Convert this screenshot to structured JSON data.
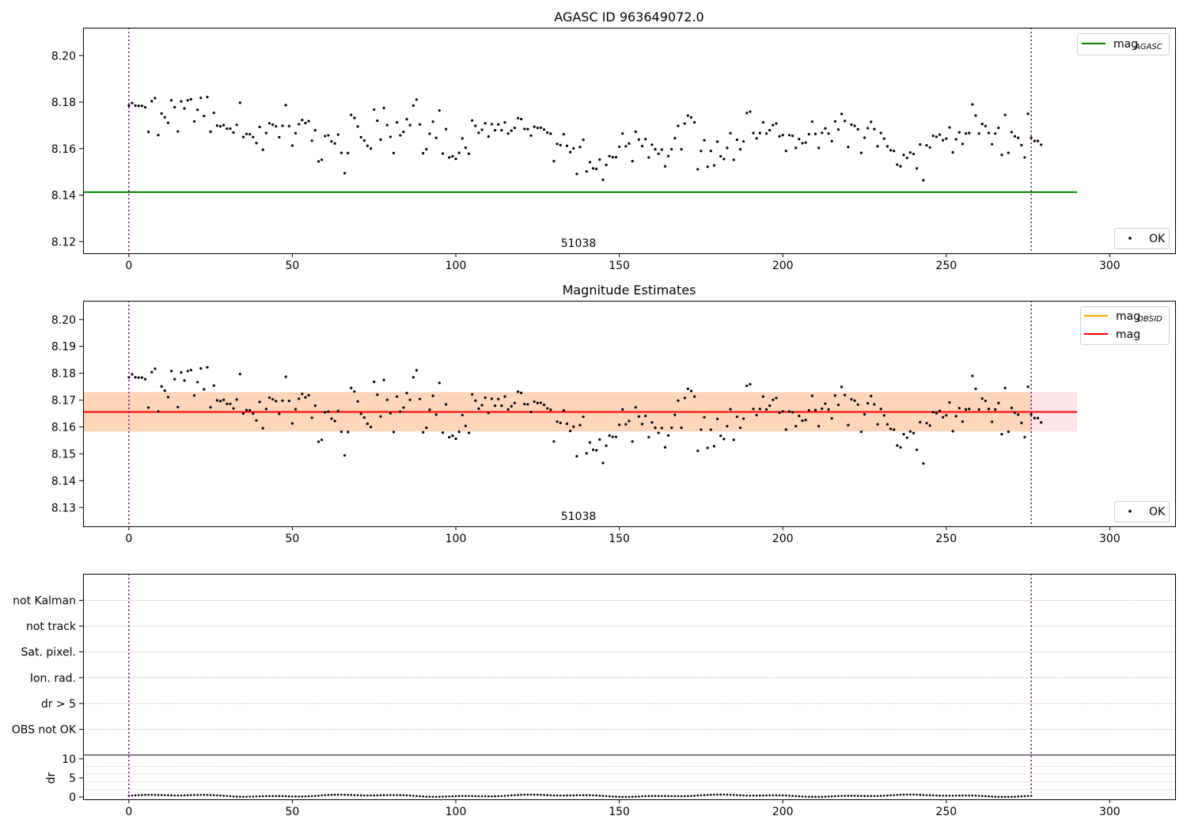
{
  "chart_data": [
    {
      "type": "scatter",
      "title": "AGASC ID 963649072.0",
      "xlim": [
        -14,
        320
      ],
      "ylim": [
        8.115,
        8.212
      ],
      "xticks": [
        0,
        50,
        100,
        150,
        200,
        250,
        300
      ],
      "yticks": [
        8.12,
        8.14,
        8.16,
        8.18,
        8.2
      ],
      "ytick_labels": [
        "8.12",
        "8.14",
        "8.16",
        "8.18",
        "8.20"
      ],
      "annotation": "51038",
      "annotation_x": 138,
      "vlines": [
        0,
        276
      ],
      "hline": {
        "name": "mag_AGASC",
        "y": 8.1413,
        "x_range": [
          -14,
          290
        ],
        "color": "#008000"
      },
      "legend_lines": [
        {
          "label": "mag",
          "sub": "AGASC",
          "color": "#008000"
        }
      ],
      "legend_points": [
        {
          "label": "OK"
        }
      ],
      "series": [
        {
          "name": "OK",
          "color": "#000000",
          "values": [
            8.1785,
            8.1796,
            8.1785,
            8.1784,
            8.1784,
            8.1778,
            8.1672,
            8.1804,
            8.1817,
            8.1658,
            8.1751,
            8.1735,
            8.1711,
            8.1808,
            8.1778,
            8.1674,
            8.1803,
            8.1773,
            8.1808,
            8.1812,
            8.1717,
            8.1767,
            8.1818,
            8.174,
            8.1822,
            8.1673,
            8.1754,
            8.1699,
            8.1696,
            8.1701,
            8.1686,
            8.1686,
            8.1669,
            8.1702,
            8.1797,
            8.165,
            8.1663,
            8.1662,
            8.165,
            8.1624,
            8.1693,
            8.1595,
            8.1667,
            8.1709,
            8.1703,
            8.1696,
            8.1649,
            8.1698,
            8.1787,
            8.1697,
            8.1613,
            8.1666,
            8.1705,
            8.1723,
            8.171,
            8.1718,
            8.1634,
            8.1679,
            8.1545,
            8.1552,
            8.1654,
            8.1657,
            8.1631,
            8.1622,
            8.166,
            8.1582,
            8.1494,
            8.1581,
            8.1745,
            8.1732,
            8.1695,
            8.1649,
            8.1635,
            8.1612,
            8.16,
            8.1768,
            8.172,
            8.1639,
            8.1775,
            8.1701,
            8.1651,
            8.1581,
            8.1713,
            8.1657,
            8.1672,
            8.1726,
            8.1701,
            8.1785,
            8.1811,
            8.1704,
            8.158,
            8.1597,
            8.1664,
            8.1716,
            8.1646,
            8.1764,
            8.1579,
            8.1684,
            8.1562,
            8.1567,
            8.1556,
            8.1582,
            8.1644,
            8.1604,
            8.1578,
            8.1721,
            8.1698,
            8.1668,
            8.1681,
            8.1709,
            8.1652,
            8.1705,
            8.1679,
            8.1704,
            8.1679,
            8.1713,
            8.1665,
            8.1677,
            8.1689,
            8.1731,
            8.1727,
            8.1685,
            8.1684,
            8.1656,
            8.1694,
            8.1689,
            8.169,
            8.1682,
            8.1669,
            8.1664,
            8.1546,
            8.162,
            8.1615,
            8.1662,
            8.1612,
            8.1585,
            8.1601,
            8.1491,
            8.1607,
            8.1638,
            8.1502,
            8.1542,
            8.1515,
            8.1513,
            8.1553,
            8.1466,
            8.153,
            8.1568,
            8.1563,
            8.1563,
            8.1608,
            8.1665,
            8.161,
            8.1622,
            8.1546,
            8.1673,
            8.1639,
            8.1611,
            8.1641,
            8.1562,
            8.1617,
            8.1597,
            8.1578,
            8.1596,
            8.1524,
            8.1568,
            8.1597,
            8.1645,
            8.1698,
            8.1597,
            8.1708,
            8.1742,
            8.1734,
            8.1713,
            8.1511,
            8.159,
            8.1636,
            8.1522,
            8.159,
            8.1528,
            8.163,
            8.1567,
            8.1555,
            8.1603,
            8.1666,
            8.1552,
            8.1638,
            8.1597,
            8.1631,
            8.1753,
            8.1759,
            8.1667,
            8.1644,
            8.1667,
            8.1713,
            8.1665,
            8.1679,
            8.1701,
            8.1708,
            8.1653,
            8.1658,
            8.159,
            8.1658,
            8.1655,
            8.1603,
            8.1641,
            8.1623,
            8.1626,
            8.1662,
            8.1716,
            8.1663,
            8.1603,
            8.1668,
            8.1687,
            8.1665,
            8.1632,
            8.1717,
            8.1682,
            8.1749,
            8.1719,
            8.1607,
            8.1703,
            8.1698,
            8.1683,
            8.1582,
            8.1647,
            8.1688,
            8.1715,
            8.1684,
            8.161,
            8.1667,
            8.1643,
            8.161,
            8.1593,
            8.159,
            8.1531,
            8.1524,
            8.1573,
            8.156,
            8.1583,
            8.1577,
            8.1515,
            8.1618,
            8.1464,
            8.1614,
            8.1605,
            8.1655,
            8.1651,
            8.166,
            8.1636,
            8.1643,
            8.1691,
            8.1584,
            8.164,
            8.167,
            8.162,
            8.1665,
            8.1667,
            8.179,
            8.1742,
            8.1665,
            8.1706,
            8.1697,
            8.1667,
            8.1619,
            8.1665,
            8.1689,
            8.1573,
            8.1745,
            8.1582,
            8.1671,
            8.1653,
            8.1646,
            8.1615,
            8.1562,
            8.175,
            8.1647,
            8.1633,
            8.1633,
            8.1617
          ]
        }
      ]
    },
    {
      "type": "scatter",
      "title": "Magnitude Estimates",
      "xlim": [
        -14,
        320
      ],
      "ylim": [
        8.123,
        8.207
      ],
      "xticks": [
        0,
        50,
        100,
        150,
        200,
        250,
        300
      ],
      "yticks": [
        8.13,
        8.14,
        8.15,
        8.16,
        8.17,
        8.18,
        8.19,
        8.2
      ],
      "ytick_labels": [
        "8.13",
        "8.14",
        "8.15",
        "8.16",
        "8.17",
        "8.18",
        "8.19",
        "8.20"
      ],
      "annotation": "51038",
      "annotation_x": 138,
      "vlines": [
        0,
        276
      ],
      "bands": [
        {
          "y0": 8.1583,
          "y1": 8.173,
          "x_range": [
            -14,
            290
          ],
          "color": "#ffc0cb",
          "opacity": 0.45
        },
        {
          "y0": 8.1583,
          "y1": 8.173,
          "x_range": [
            -14,
            276
          ],
          "color": "#ffa500",
          "opacity": 0.2
        }
      ],
      "hlines": [
        {
          "name": "mag_OBSID",
          "y": 8.1656,
          "x_range": [
            -14,
            276
          ],
          "color": "#ffa500"
        },
        {
          "name": "mag",
          "y": 8.1656,
          "x_range": [
            -14,
            290
          ],
          "color": "#ff0000"
        }
      ],
      "legend_lines": [
        {
          "label": "mag",
          "sub": "OBSID",
          "color": "#ffa500"
        },
        {
          "label": "mag",
          "sub": "",
          "color": "#ff0000"
        }
      ],
      "legend_points": [
        {
          "label": "OK"
        }
      ],
      "series_ref": "same OK series as panel 1"
    },
    {
      "type": "scatter",
      "title": "",
      "xlim": [
        -14,
        320
      ],
      "xticks": [
        0,
        50,
        100,
        150,
        200,
        250,
        300
      ],
      "vlines": [
        0,
        276
      ],
      "flag_rows": [
        "not Kalman",
        "not track",
        "Sat. pixel.",
        "Ion. rad.",
        "dr > 5",
        "OBS not OK"
      ],
      "dr": {
        "ylabel": "dr",
        "ylim": [
          -0.6,
          11
        ],
        "yticks": [
          0,
          5,
          10
        ],
        "ytick_labels": [
          "0",
          "5",
          "10"
        ],
        "series": [
          {
            "name": "dr",
            "values": "approximately 0.1–0.8 for every observation"
          }
        ]
      }
    }
  ]
}
